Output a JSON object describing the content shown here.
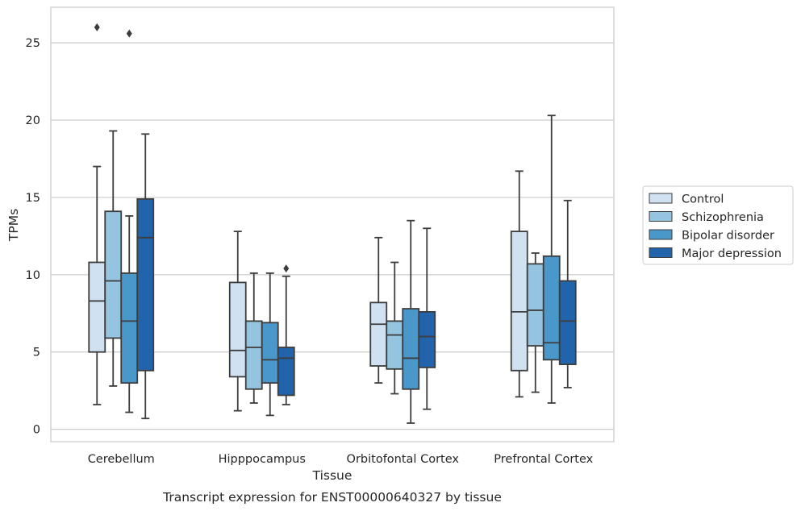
{
  "chart_data": {
    "type": "box",
    "xlabel": "Tissue",
    "ylabel": "TPMs",
    "caption": "Transcript expression for ENST00000640327 by tissue",
    "ylim": [
      -0.8,
      27.3
    ],
    "yticks": [
      0,
      5,
      10,
      15,
      20,
      25
    ],
    "grid": true,
    "legend_position": "right",
    "categories": [
      "Cerebellum",
      "Hipppocampus",
      "Orbitofontal Cortex",
      "Prefrontal Cortex"
    ],
    "series": [
      {
        "name": "Control",
        "color": "#d0e1f2",
        "boxes": [
          {
            "whisker_low": 1.6,
            "q1": 5.0,
            "median": 8.3,
            "q3": 10.8,
            "whisker_high": 17.0,
            "outliers": [
              26.0
            ]
          },
          {
            "whisker_low": 1.2,
            "q1": 3.4,
            "median": 5.1,
            "q3": 9.5,
            "whisker_high": 12.8,
            "outliers": []
          },
          {
            "whisker_low": 3.0,
            "q1": 4.1,
            "median": 6.8,
            "q3": 8.2,
            "whisker_high": 12.4,
            "outliers": []
          },
          {
            "whisker_low": 2.1,
            "q1": 3.8,
            "median": 7.6,
            "q3": 12.8,
            "whisker_high": 16.7,
            "outliers": []
          }
        ]
      },
      {
        "name": "Schizophrenia",
        "color": "#94c4df",
        "boxes": [
          {
            "whisker_low": 2.8,
            "q1": 5.9,
            "median": 9.6,
            "q3": 14.1,
            "whisker_high": 19.3,
            "outliers": []
          },
          {
            "whisker_low": 1.7,
            "q1": 2.6,
            "median": 5.3,
            "q3": 7.0,
            "whisker_high": 10.1,
            "outliers": []
          },
          {
            "whisker_low": 2.3,
            "q1": 3.9,
            "median": 6.1,
            "q3": 7.0,
            "whisker_high": 10.8,
            "outliers": []
          },
          {
            "whisker_low": 2.4,
            "q1": 5.4,
            "median": 7.7,
            "q3": 10.7,
            "whisker_high": 11.4,
            "outliers": []
          }
        ]
      },
      {
        "name": "Bipolar disorder",
        "color": "#4a98c9",
        "boxes": [
          {
            "whisker_low": 1.1,
            "q1": 3.0,
            "median": 7.0,
            "q3": 10.1,
            "whisker_high": 13.8,
            "outliers": [
              25.6
            ]
          },
          {
            "whisker_low": 0.9,
            "q1": 3.0,
            "median": 4.5,
            "q3": 6.9,
            "whisker_high": 10.1,
            "outliers": []
          },
          {
            "whisker_low": 0.4,
            "q1": 2.6,
            "median": 4.6,
            "q3": 7.8,
            "whisker_high": 13.5,
            "outliers": []
          },
          {
            "whisker_low": 1.7,
            "q1": 4.5,
            "median": 5.6,
            "q3": 11.2,
            "whisker_high": 20.3,
            "outliers": []
          }
        ]
      },
      {
        "name": "Major depression",
        "color": "#2164ab",
        "boxes": [
          {
            "whisker_low": 0.7,
            "q1": 3.8,
            "median": 12.4,
            "q3": 14.9,
            "whisker_high": 19.1,
            "outliers": []
          },
          {
            "whisker_low": 1.6,
            "q1": 2.2,
            "median": 4.6,
            "q3": 5.3,
            "whisker_high": 9.9,
            "outliers": [
              10.4
            ]
          },
          {
            "whisker_low": 1.3,
            "q1": 4.0,
            "median": 6.0,
            "q3": 7.6,
            "whisker_high": 13.0,
            "outliers": []
          },
          {
            "whisker_low": 2.7,
            "q1": 4.2,
            "median": 7.0,
            "q3": 9.6,
            "whisker_high": 14.8,
            "outliers": []
          }
        ]
      }
    ]
  }
}
